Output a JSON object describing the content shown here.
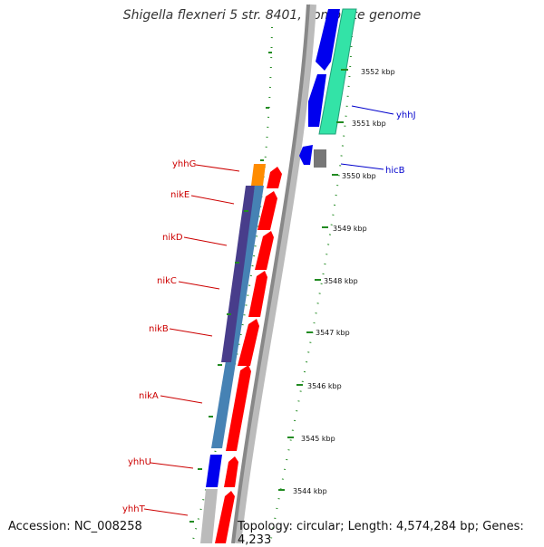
{
  "title": "Shigella flexneri 5 str. 8401, complete genome",
  "accession": "Accession: NC_008258",
  "topology": "Topology: circular; Length: 4,574,284 bp; Genes: 4,233",
  "colors": {
    "forward_cds": "#ff0000",
    "reverse_cds": "#0000ee",
    "operon_light": "#4682b4",
    "operon_dark": "#483d8b",
    "highlight_orange": "#ff8c00",
    "highlight_teal": "#33e3a7",
    "gray_feature": "#777777",
    "tick_green": "#228b22",
    "label_red": "#cc0000",
    "label_blue": "#0000cc"
  },
  "scale_ticks": [
    {
      "label": "3552 kbp"
    },
    {
      "label": "3551 kbp"
    },
    {
      "label": "3550 kbp"
    },
    {
      "label": "3549 kbp"
    },
    {
      "label": "3548 kbp"
    },
    {
      "label": "3547 kbp"
    },
    {
      "label": "3546 kbp"
    },
    {
      "label": "3545 kbp"
    },
    {
      "label": "3544 kbp"
    }
  ],
  "genes": [
    {
      "name": "yhhJ",
      "strand": "reverse"
    },
    {
      "name": "hicB",
      "strand": "reverse"
    },
    {
      "name": "yhhG",
      "strand": "forward"
    },
    {
      "name": "nikE",
      "strand": "forward"
    },
    {
      "name": "nikD",
      "strand": "forward"
    },
    {
      "name": "nikC",
      "strand": "forward"
    },
    {
      "name": "nikB",
      "strand": "forward"
    },
    {
      "name": "nikA",
      "strand": "forward"
    },
    {
      "name": "yhhU",
      "strand": "forward"
    },
    {
      "name": "yhhT",
      "strand": "forward"
    }
  ]
}
